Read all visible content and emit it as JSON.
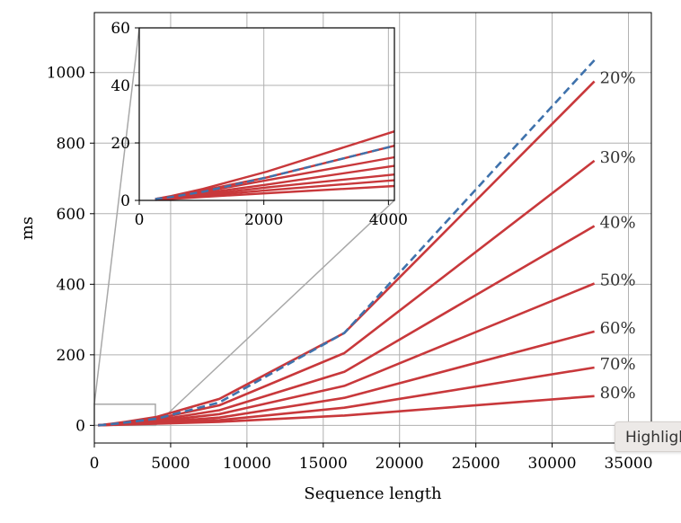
{
  "chart_data": [
    {
      "type": "line",
      "xlabel": "Sequence length",
      "ylabel": "ms",
      "xlim": [
        0,
        36500
      ],
      "ylim": [
        -50,
        1170
      ],
      "xticks": [
        0,
        5000,
        10000,
        15000,
        20000,
        25000,
        30000,
        35000
      ],
      "yticks": [
        0,
        200,
        400,
        600,
        800,
        1000
      ],
      "grid": true,
      "x": [
        256,
        512,
        1024,
        2048,
        4096,
        8192,
        16384,
        32768
      ],
      "series": [
        {
          "name": "20%",
          "color": "#c8383b",
          "style": "solid",
          "values": [
            0.5,
            1.5,
            4,
            10,
            24,
            75,
            262,
            975
          ]
        },
        {
          "name": "30%",
          "color": "#c8383b",
          "style": "solid",
          "values": [
            0.5,
            1.3,
            3.5,
            8,
            19,
            57,
            205,
            750
          ]
        },
        {
          "name": "40%",
          "color": "#c8383b",
          "style": "solid",
          "values": [
            0.4,
            1.1,
            3,
            7,
            15,
            43,
            152,
            565
          ]
        },
        {
          "name": "50%",
          "color": "#c8383b",
          "style": "solid",
          "values": [
            0.4,
            1,
            2.5,
            5.5,
            12,
            32,
            112,
            402
          ]
        },
        {
          "name": "60%",
          "color": "#c8383b",
          "style": "solid",
          "values": [
            0.3,
            0.8,
            2,
            4.5,
            9,
            22,
            78,
            266
          ]
        },
        {
          "name": "70%",
          "color": "#c8383b",
          "style": "solid",
          "values": [
            0.3,
            0.7,
            1.6,
            3.5,
            7,
            15,
            50,
            164
          ]
        },
        {
          "name": "80%",
          "color": "#c8383b",
          "style": "solid",
          "values": [
            0.2,
            0.5,
            1.2,
            2.5,
            5,
            10,
            28,
            83
          ]
        },
        {
          "name": "",
          "color": "#3f72ac",
          "style": "dashed",
          "values": [
            0.5,
            1.2,
            3,
            8,
            19,
            65,
            262,
            1035
          ]
        }
      ],
      "zoom_box": {
        "x": [
          0,
          4000
        ],
        "y": [
          0,
          60
        ]
      }
    },
    {
      "type": "line",
      "xlim": [
        0,
        4096
      ],
      "ylim": [
        0,
        60
      ],
      "xticks": [
        0,
        2000,
        4000
      ],
      "yticks": [
        0,
        20,
        40,
        60
      ],
      "grid": true,
      "inset": true
    }
  ],
  "tooltip": {
    "text": "Highlight"
  }
}
